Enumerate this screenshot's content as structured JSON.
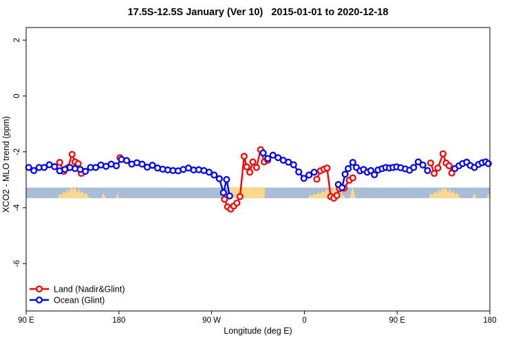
{
  "title": "17.5S-12.5S January (Ver 10)   2015-01-01 to 2020-12-18",
  "colors": {
    "land_series": "#ff0000",
    "ocean_series": "#0000ff",
    "ocean_strip": "#a9bdd8",
    "land_strip": "#fad88c",
    "axis": "#000000",
    "background": "#ffffff"
  },
  "legend": {
    "items": [
      {
        "label": "Land (Nadir&Glint)",
        "color": "#ff0000"
      },
      {
        "label": "Ocean (Glint)",
        "color": "#0000ff"
      }
    ]
  },
  "chart_data": {
    "type": "line",
    "title": "17.5S-12.5S January (Ver 10)   2015-01-01 to 2020-12-18",
    "xlabel": "Longitude (deg E)",
    "ylabel": "XCO2 - MLO trend (ppm)",
    "xlim": [
      90,
      540
    ],
    "ylim": [
      -7.7,
      2.45
    ],
    "grid": false,
    "legend_position": "bottom-left",
    "x_axis_note": "longitude axis wraps eastward: 90E -> 180 -> 90W -> 0 -> 90E -> 180",
    "x_ticks": [
      {
        "pos": 90,
        "label": "90 E"
      },
      {
        "pos": 180,
        "label": "180"
      },
      {
        "pos": 270,
        "label": "90 W"
      },
      {
        "pos": 360,
        "label": "0"
      },
      {
        "pos": 450,
        "label": "90 E"
      },
      {
        "pos": 540,
        "label": "180"
      }
    ],
    "y_ticks": [
      {
        "pos": 2,
        "label": "2"
      },
      {
        "pos": 0,
        "label": "0"
      },
      {
        "pos": -2,
        "label": "-2"
      },
      {
        "pos": -4,
        "label": "-4"
      },
      {
        "pos": -6,
        "label": "-6"
      }
    ],
    "surface_strip": {
      "ocean_color": "#a9bdd8",
      "land_color": "#fad88c",
      "x_range": [
        90,
        540
      ],
      "value_top": -3.28,
      "value_bottom": -3.66,
      "land_patches": [
        {
          "name": "australia-pass1",
          "profile": [
            [
              120.5,
              0
            ],
            [
              122.5,
              0.45
            ],
            [
              124.5,
              0.3
            ],
            [
              126.5,
              0.65
            ],
            [
              128.5,
              0.4
            ],
            [
              130.5,
              0.85
            ],
            [
              132,
              0.55
            ],
            [
              133.5,
              1.1
            ],
            [
              135,
              0.7
            ],
            [
              136.5,
              1.2
            ],
            [
              138,
              0.85
            ],
            [
              139.5,
              0.5
            ],
            [
              141,
              0.95
            ],
            [
              142.5,
              0.5
            ],
            [
              144.5,
              0.65
            ],
            [
              146.5,
              0.35
            ],
            [
              148.5,
              0.5
            ],
            [
              150,
              0.25
            ],
            [
              151.5,
              0
            ]
          ]
        },
        {
          "name": "new-caledonia-pass1",
          "profile": [
            [
              163,
              0
            ],
            [
              164.5,
              0.5
            ],
            [
              166,
              0.25
            ],
            [
              167.5,
              0
            ]
          ]
        },
        {
          "name": "fiji-pass1",
          "profile": [
            [
              177,
              0
            ],
            [
              178.5,
              0.55
            ],
            [
              180,
              0
            ]
          ]
        },
        {
          "name": "south-america",
          "profile": [
            [
              286.5,
              1.04
            ],
            [
              321.5,
              1.04
            ]
          ]
        },
        {
          "name": "africa",
          "profile": [
            [
              363.5,
              0
            ],
            [
              365.5,
              0.3
            ],
            [
              367.5,
              0.18
            ],
            [
              369.5,
              0.45
            ],
            [
              371.5,
              0.3
            ],
            [
              373.5,
              0.55
            ],
            [
              375.5,
              0.38
            ],
            [
              377.5,
              0.7
            ],
            [
              379.5,
              0.5
            ],
            [
              381.5,
              0.85
            ],
            [
              383.5,
              0.6
            ],
            [
              385.5,
              1.05
            ],
            [
              387.5,
              0.7
            ],
            [
              389.5,
              1.15
            ],
            [
              391.5,
              0.8
            ],
            [
              393.5,
              0.95
            ],
            [
              395.5,
              0.55
            ],
            [
              397.5,
              0.35
            ],
            [
              400,
              0
            ]
          ]
        },
        {
          "name": "madagascar",
          "profile": [
            [
              404,
              0
            ],
            [
              405.5,
              0.65
            ],
            [
              407,
              1.05
            ],
            [
              408.5,
              0.5
            ],
            [
              410,
              0
            ]
          ]
        },
        {
          "name": "australia-pass2",
          "profile": [
            [
              480.5,
              0
            ],
            [
              482.5,
              0.45
            ],
            [
              484.5,
              0.3
            ],
            [
              486.5,
              0.65
            ],
            [
              488.5,
              0.4
            ],
            [
              490.5,
              0.85
            ],
            [
              492,
              0.55
            ],
            [
              493.5,
              1.1
            ],
            [
              495,
              0.7
            ],
            [
              496.5,
              1.2
            ],
            [
              498,
              0.85
            ],
            [
              499.5,
              0.5
            ],
            [
              501,
              0.95
            ],
            [
              502.5,
              0.5
            ],
            [
              504.5,
              0.65
            ],
            [
              506.5,
              0.35
            ],
            [
              508.5,
              0.5
            ],
            [
              510,
              0.25
            ],
            [
              511.5,
              0
            ]
          ]
        },
        {
          "name": "new-caledonia-pass2",
          "profile": [
            [
              523,
              0
            ],
            [
              524.5,
              0.5
            ],
            [
              526,
              0.25
            ],
            [
              527.5,
              0
            ]
          ]
        },
        {
          "name": "fiji-pass2",
          "profile": [
            [
              537,
              0
            ],
            [
              538.5,
              0.55
            ],
            [
              540,
              0
            ]
          ]
        }
      ]
    },
    "series": [
      {
        "name": "Land (Nadir&Glint)",
        "color": "#ff0000",
        "marker": "open-circle",
        "segments": [
          [
            [
              122.5,
              -2.38
            ],
            [
              126.5,
              -2.7
            ],
            [
              130.5,
              -2.57
            ],
            [
              134.5,
              -2.09
            ],
            [
              137.5,
              -2.36
            ],
            [
              140.5,
              -2.42
            ],
            [
              143.5,
              -2.77
            ]
          ],
          [
            [
              181,
              -2.21
            ]
          ],
          [
            [
              282.5,
              -3.7
            ],
            [
              285.5,
              -3.97
            ],
            [
              288.5,
              -4.05
            ],
            [
              291.5,
              -3.94
            ],
            [
              294.5,
              -3.83
            ],
            [
              297.5,
              -3.6
            ],
            [
              301.5,
              -2.16
            ],
            [
              304,
              -2.54
            ],
            [
              307,
              -2.73
            ],
            [
              310,
              -2.36
            ],
            [
              313.5,
              -2.56
            ],
            [
              317.5,
              -1.92
            ],
            [
              321,
              -2.36
            ],
            [
              324.5,
              -2.3
            ]
          ],
          [
            [
              372,
              -2.98
            ],
            [
              375.5,
              -2.68
            ],
            [
              379,
              -2.62
            ],
            [
              382,
              -2.58
            ],
            [
              385.5,
              -3.6
            ],
            [
              388.5,
              -3.66
            ],
            [
              391.5,
              -3.56
            ],
            [
              394,
              -3.32
            ],
            [
              398.5,
              -3.3
            ],
            [
              403.5,
              -3.02
            ],
            [
              407,
              -2.93
            ]
          ],
          [
            [
              482.5,
              -2.4
            ],
            [
              486,
              -2.77
            ],
            [
              489.5,
              -2.58
            ],
            [
              494.5,
              -2.07
            ],
            [
              497.5,
              -2.4
            ],
            [
              500.5,
              -2.5
            ],
            [
              503,
              -2.76
            ]
          ]
        ]
      },
      {
        "name": "Ocean (Glint)",
        "color": "#0000ff",
        "marker": "open-circle",
        "segments": [
          [
            [
              92.5,
              -2.56
            ],
            [
              97.5,
              -2.67
            ],
            [
              102.5,
              -2.56
            ],
            [
              107.5,
              -2.56
            ],
            [
              112.5,
              -2.46
            ],
            [
              117.5,
              -2.53
            ],
            [
              122.5,
              -2.68
            ],
            [
              127.5,
              -2.63
            ],
            [
              132.5,
              -2.56
            ],
            [
              137.5,
              -2.6
            ],
            [
              142.5,
              -2.63
            ],
            [
              147.5,
              -2.7
            ],
            [
              152.5,
              -2.56
            ],
            [
              157.5,
              -2.56
            ],
            [
              162.5,
              -2.47
            ],
            [
              167.5,
              -2.52
            ],
            [
              172.5,
              -2.44
            ],
            [
              177.5,
              -2.5
            ],
            [
              182.5,
              -2.27
            ],
            [
              187.5,
              -2.31
            ],
            [
              192.5,
              -2.44
            ],
            [
              197.5,
              -2.39
            ],
            [
              202.5,
              -2.44
            ],
            [
              207.5,
              -2.55
            ],
            [
              212.5,
              -2.48
            ],
            [
              217.5,
              -2.58
            ],
            [
              222.5,
              -2.62
            ],
            [
              227.5,
              -2.65
            ],
            [
              232.5,
              -2.67
            ],
            [
              237.5,
              -2.68
            ],
            [
              242.5,
              -2.63
            ],
            [
              247.5,
              -2.58
            ],
            [
              252.5,
              -2.65
            ],
            [
              257.5,
              -2.64
            ],
            [
              262.5,
              -2.67
            ],
            [
              267.5,
              -2.73
            ],
            [
              272.5,
              -2.83
            ],
            [
              277.5,
              -2.96
            ],
            [
              281.5,
              -3.46
            ],
            [
              284.5,
              -2.99
            ],
            [
              287.5,
              -3.58
            ]
          ],
          [
            [
              320,
              -2.04
            ],
            [
              324.5,
              -2.24
            ],
            [
              329.5,
              -2.12
            ],
            [
              334.5,
              -2.21
            ],
            [
              339.5,
              -2.3
            ],
            [
              344.5,
              -2.37
            ],
            [
              349.5,
              -2.46
            ],
            [
              354.5,
              -2.72
            ],
            [
              359.5,
              -2.95
            ],
            [
              364.5,
              -2.83
            ],
            [
              369.5,
              -2.73
            ]
          ],
          [
            [
              393,
              -3.17
            ],
            [
              396.5,
              -3.28
            ],
            [
              399.5,
              -2.8
            ],
            [
              402.5,
              -2.6
            ],
            [
              407,
              -2.38
            ],
            [
              410.5,
              -2.56
            ],
            [
              414,
              -2.68
            ],
            [
              417.5,
              -2.63
            ],
            [
              421,
              -2.73
            ],
            [
              424.5,
              -2.67
            ],
            [
              428,
              -2.82
            ],
            [
              431.5,
              -2.65
            ],
            [
              435.5,
              -2.6
            ],
            [
              439,
              -2.56
            ],
            [
              442.5,
              -2.58
            ],
            [
              446,
              -2.56
            ],
            [
              449.5,
              -2.54
            ],
            [
              453.5,
              -2.57
            ],
            [
              458,
              -2.61
            ],
            [
              462,
              -2.66
            ],
            [
              466,
              -2.56
            ],
            [
              470.5,
              -2.36
            ],
            [
              475,
              -2.47
            ],
            [
              479.5,
              -2.67
            ]
          ],
          [
            [
              506,
              -2.6
            ],
            [
              510,
              -2.5
            ],
            [
              513.5,
              -2.42
            ],
            [
              517.5,
              -2.37
            ],
            [
              521,
              -2.49
            ],
            [
              525,
              -2.56
            ],
            [
              529,
              -2.45
            ],
            [
              532.5,
              -2.39
            ],
            [
              536,
              -2.36
            ],
            [
              538.5,
              -2.42
            ]
          ]
        ]
      }
    ]
  }
}
